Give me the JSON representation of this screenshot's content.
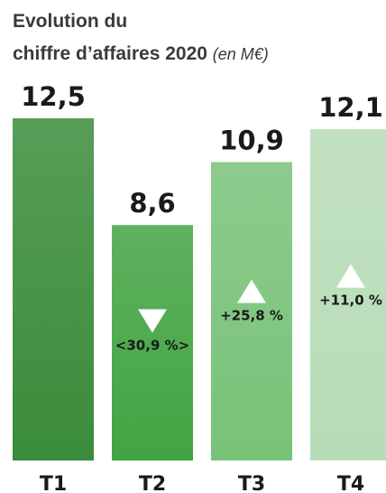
{
  "chart_data": {
    "type": "bar",
    "title": "Evolution du",
    "title_line2": "chiffre d’affaires 2020",
    "unit_note": "(en M€)",
    "categories": [
      "T1",
      "T2",
      "T3",
      "T4"
    ],
    "values": [
      12.5,
      8.6,
      10.9,
      12.1
    ],
    "value_labels": [
      "12,5",
      "8,6",
      "10,9",
      "12,1"
    ],
    "colors": [
      "#3a8c3a",
      "#42a442",
      "#78c278",
      "#b7dcb7"
    ],
    "annotations": [
      {
        "category": "T2",
        "text": "<30,9 %>",
        "arrow": "down"
      },
      {
        "category": "T3",
        "text": "+25,8 %",
        "arrow": "up"
      },
      {
        "category": "T4",
        "text": "+11,0 %",
        "arrow": "up"
      }
    ]
  }
}
